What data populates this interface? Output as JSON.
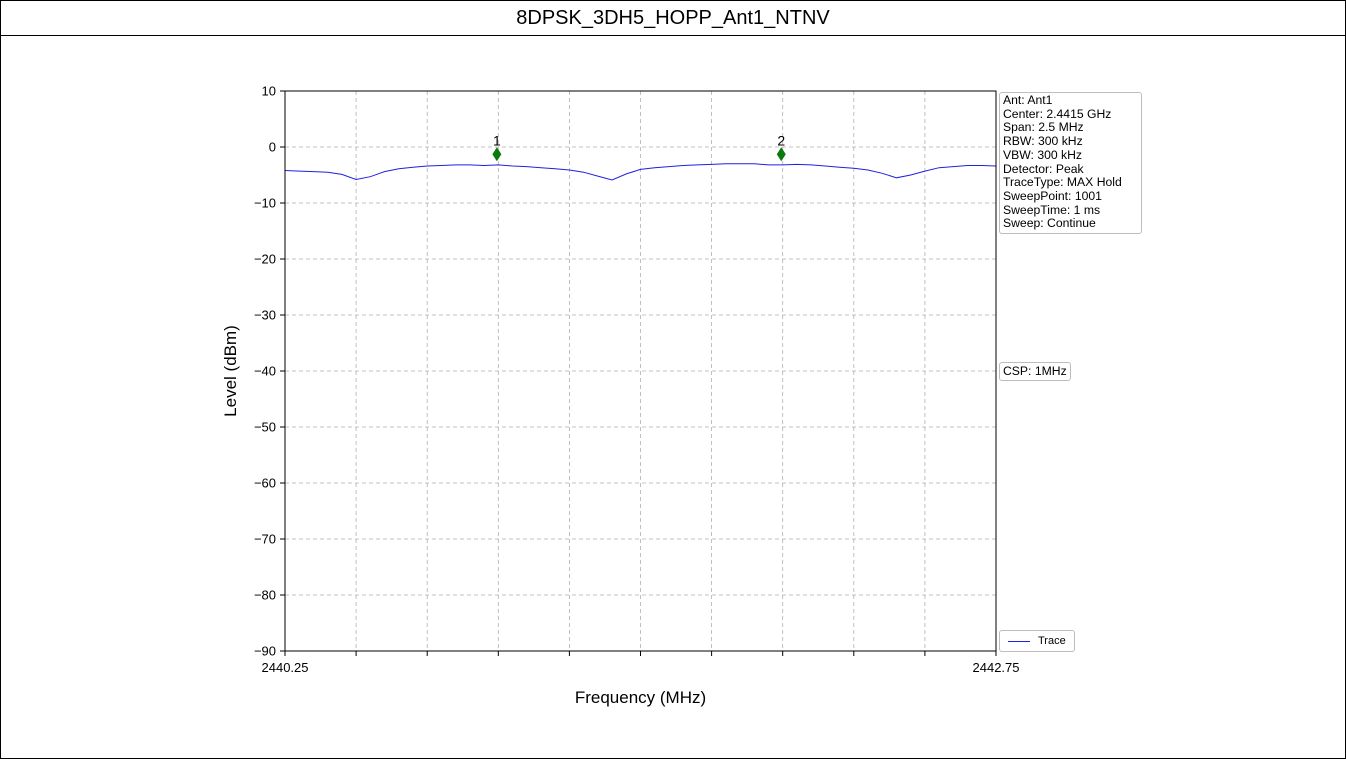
{
  "page": {
    "title": "8DPSK_3DH5_HOPP_Ant1_NTNV"
  },
  "info_panel": {
    "lines": [
      "Ant: Ant1",
      "Center: 2.4415 GHz",
      "Span: 2.5 MHz",
      "RBW: 300 kHz",
      "VBW: 300 kHz",
      "Detector: Peak",
      "TraceType: MAX Hold",
      "SweepPoint: 1001",
      "SweepTime: 1 ms",
      "Sweep: Continue"
    ],
    "csp_label": "CSP: 1MHz"
  },
  "legend": {
    "entries": [
      "Trace"
    ],
    "placement": "lower-right outside"
  },
  "chart_data": {
    "type": "line",
    "title": "",
    "xlabel": "Frequency (MHz)",
    "ylabel": "Level (dBm)",
    "xlim": [
      2440.25,
      2442.75
    ],
    "ylim": [
      -90,
      10
    ],
    "x_tick_labels": [
      "2440.25",
      "2442.75"
    ],
    "y_ticks": [
      10,
      0,
      -10,
      -20,
      -30,
      -40,
      -50,
      -60,
      -70,
      -80,
      -90
    ],
    "y_tick_labels": [
      "10",
      "0",
      "−10",
      "−20",
      "−30",
      "−40",
      "−50",
      "−60",
      "−70",
      "−80",
      "−90"
    ],
    "grid": true,
    "series": [
      {
        "name": "Trace",
        "color": "#2020e0",
        "x": [
          2440.25,
          2440.3,
          2440.35,
          2440.4,
          2440.45,
          2440.5,
          2440.55,
          2440.6,
          2440.65,
          2440.7,
          2440.75,
          2440.8,
          2440.85,
          2440.9,
          2440.95,
          2441.0,
          2441.05,
          2441.1,
          2441.15,
          2441.2,
          2441.25,
          2441.3,
          2441.35,
          2441.4,
          2441.45,
          2441.5,
          2441.55,
          2441.6,
          2441.65,
          2441.7,
          2441.75,
          2441.8,
          2441.85,
          2441.9,
          2441.95,
          2442.0,
          2442.05,
          2442.1,
          2442.15,
          2442.2,
          2442.25,
          2442.3,
          2442.35,
          2442.4,
          2442.45,
          2442.5,
          2442.55,
          2442.6,
          2442.65,
          2442.7,
          2442.75
        ],
        "y": [
          -4.2,
          -4.3,
          -4.4,
          -4.5,
          -4.9,
          -5.8,
          -5.3,
          -4.4,
          -3.9,
          -3.6,
          -3.4,
          -3.3,
          -3.2,
          -3.2,
          -3.3,
          -3.2,
          -3.4,
          -3.5,
          -3.7,
          -3.9,
          -4.1,
          -4.5,
          -5.2,
          -5.9,
          -4.8,
          -4.0,
          -3.7,
          -3.5,
          -3.3,
          -3.2,
          -3.1,
          -3.0,
          -3.0,
          -3.0,
          -3.2,
          -3.2,
          -3.1,
          -3.2,
          -3.4,
          -3.6,
          -3.8,
          -4.1,
          -4.7,
          -5.5,
          -5.0,
          -4.3,
          -3.7,
          -3.5,
          -3.3,
          -3.3,
          -3.4
        ]
      }
    ],
    "markers": [
      {
        "label": "1",
        "x": 2440.995,
        "y": -1.3,
        "color": "#0a7a0a"
      },
      {
        "label": "2",
        "x": 2441.995,
        "y": -1.3,
        "color": "#0a7a0a"
      }
    ]
  }
}
